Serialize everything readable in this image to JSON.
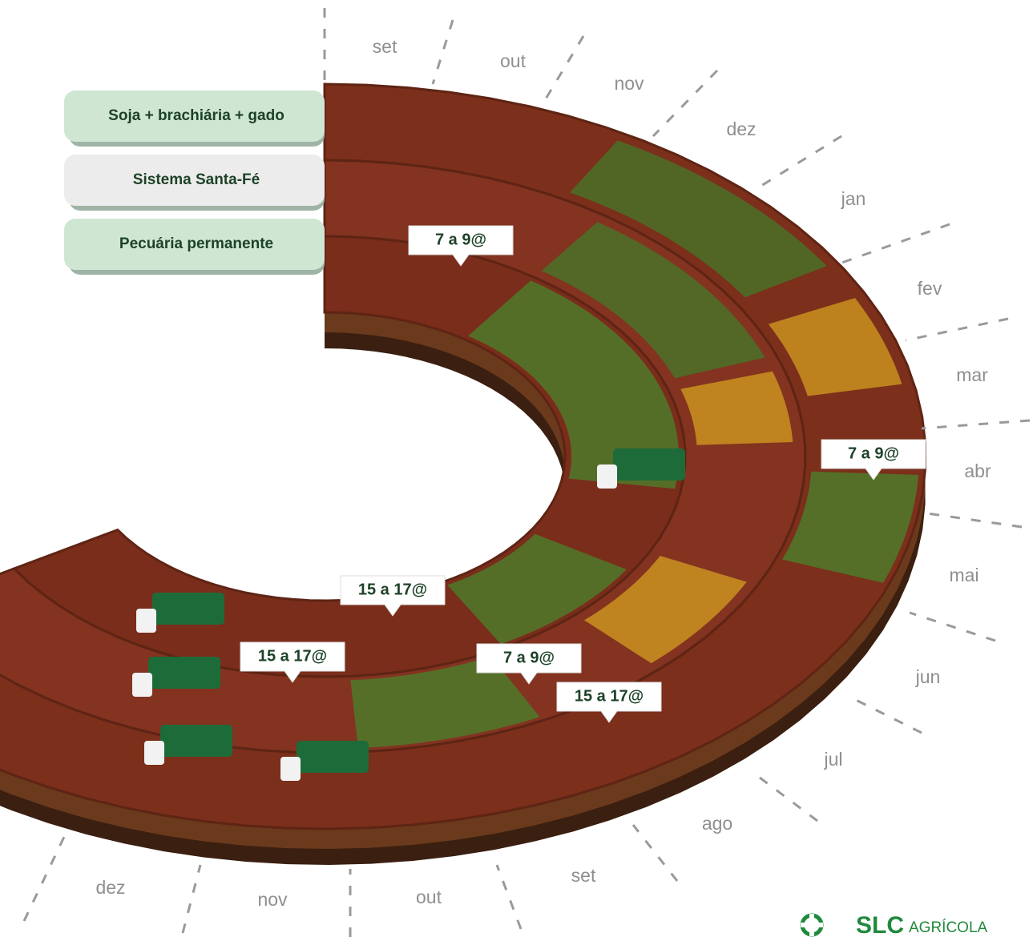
{
  "legend": [
    "Soja + brachiária + gado",
    "Sistema Santa-Fé",
    "Pecuária permanente"
  ],
  "months": [
    "set",
    "out",
    "nov",
    "dez",
    "jan",
    "fev",
    "mar",
    "abr",
    "mai",
    "jun",
    "jul",
    "ago",
    "set",
    "out",
    "nov",
    "dez"
  ],
  "callouts": [
    "7 a 9@",
    "7 a 9@",
    "15 a 17@",
    "15 a 17@",
    "7 a 9@",
    "15 a 17@"
  ],
  "logo": {
    "name": "SLC",
    "subtitle": "AGRÍCOLA"
  }
}
